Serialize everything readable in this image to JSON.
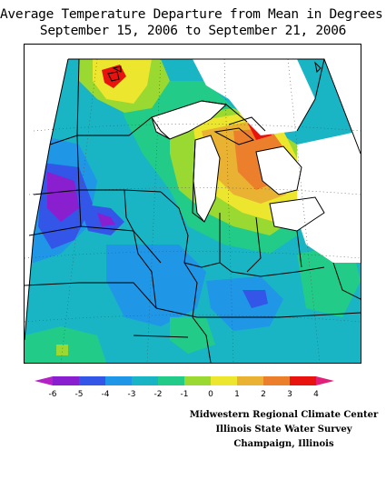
{
  "title": {
    "line1": "Average Temperature Departure from Mean in Degrees F",
    "line2": "September 15, 2006 to September 21, 2006"
  },
  "legend": {
    "labels": [
      "-6",
      "-5",
      "-4",
      "-3",
      "-2",
      "-1",
      "0",
      "1",
      "2",
      "3",
      "4"
    ],
    "colors": [
      "#8a1fcf",
      "#3355e8",
      "#1f96e6",
      "#1ab5c5",
      "#22cc88",
      "#9ad832",
      "#ece62e",
      "#eab232",
      "#ec7f2c",
      "#e8120e"
    ],
    "low_arrow_color": "#b321c7",
    "high_arrow_color": "#e2207a"
  },
  "credits": {
    "line1": "Midwestern Regional Climate Center",
    "line2": "Illinois State Water Survey",
    "line3": "Champaign, Illinois"
  }
}
